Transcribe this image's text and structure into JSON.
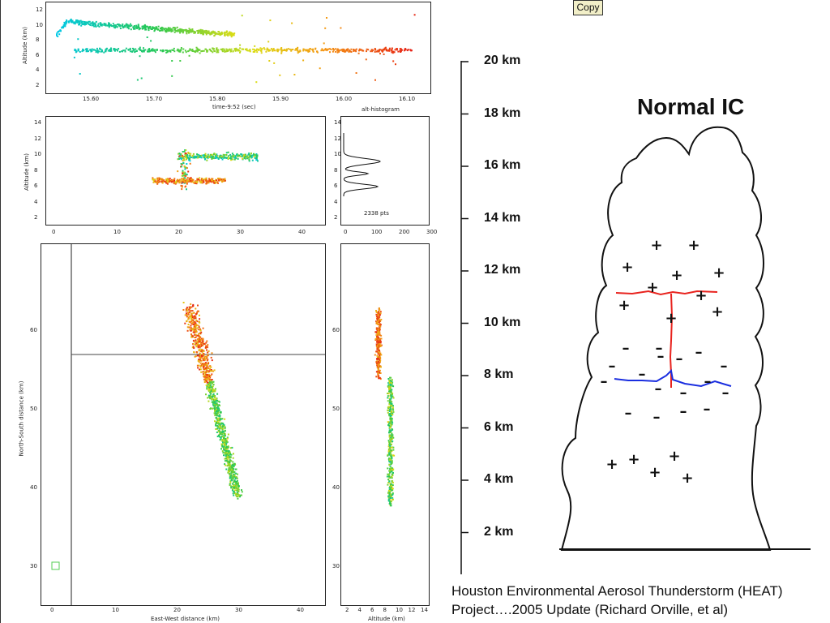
{
  "toolbar": {
    "copy_label": "Copy"
  },
  "top_panel": {
    "ylabel": "Altitude (km)",
    "xlabel": "time-9:52 (sec)",
    "yticks": [
      "12",
      "10",
      "8",
      "6",
      "4",
      "2"
    ],
    "xticks": [
      "15.60",
      "15.70",
      "15.80",
      "15.90",
      "16.00",
      "16.10"
    ]
  },
  "mid_panel": {
    "ylabel": "Altitude (km)",
    "yticks": [
      "14",
      "12",
      "10",
      "8",
      "6",
      "4",
      "2"
    ],
    "xticks": [
      "0",
      "10",
      "20",
      "30",
      "40"
    ]
  },
  "histogram": {
    "title": "alt-histogram",
    "count_label": "2338 pts",
    "yticks": [
      "14",
      "12",
      "10",
      "8",
      "6",
      "4",
      "2"
    ],
    "xticks": [
      "0",
      "100",
      "200",
      "300"
    ]
  },
  "plan_panel": {
    "ylabel": "North-South distance (km)",
    "xlabel": "East-West distance (km)",
    "yticks": [
      "60",
      "50",
      "40",
      "30"
    ],
    "xticks": [
      "0",
      "10",
      "20",
      "30",
      "40"
    ]
  },
  "side_panel": {
    "xlabel": "Altitude (km)",
    "yticks": [
      "60",
      "50",
      "40",
      "30"
    ],
    "xticks": [
      "2",
      "4",
      "6",
      "8",
      "10",
      "12",
      "14"
    ]
  },
  "diagram": {
    "title": "Normal IC",
    "altitude_labels": [
      "20 km",
      "18 km",
      "16 km",
      "14 km",
      "12 km",
      "10 km",
      "8 km",
      "6 km",
      "4 km",
      "2 km"
    ],
    "plus_symbol": "+",
    "minus_symbol": "–",
    "colors": {
      "upper_channel": "#e8231e",
      "lower_channel": "#1a2ee0",
      "outline": "#111111"
    }
  },
  "caption": {
    "line1": "Houston Environmental Aerosol Thunderstorm (HEAT)",
    "line2": "Project….2005 Update  (Richard Orville, et al)"
  }
}
